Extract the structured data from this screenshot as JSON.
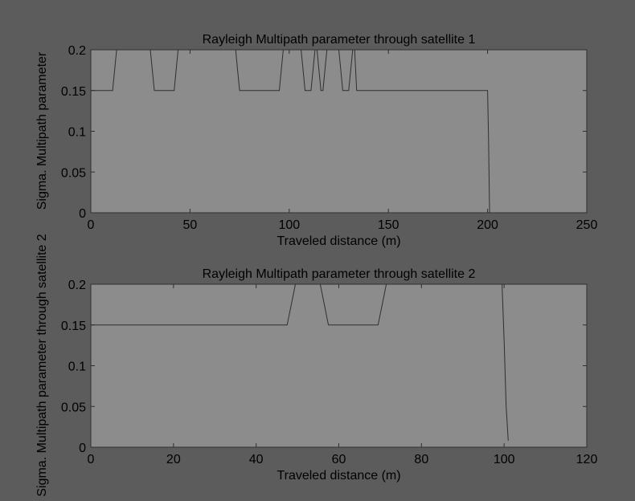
{
  "figure": {
    "bg_color": "#5c5c5c",
    "plot_bg_color": "#8c8c8c",
    "line_color": "#2f2f2f",
    "text_color": "#000000"
  },
  "chart_data": [
    {
      "type": "line",
      "title": "Rayleigh Multipath parameter through satellite 1",
      "xlabel": "Traveled distance (m)",
      "ylabel": "Sigma. Multipath parameter",
      "xlim": [
        0,
        250
      ],
      "ylim": [
        0,
        0.2
      ],
      "xticks": [
        "0",
        "50",
        "100",
        "150",
        "200",
        "250"
      ],
      "yticks": [
        "0",
        "0.05",
        "0.1",
        "0.15",
        "0.2"
      ],
      "series": [
        {
          "x": [
            0,
            11,
            12,
            13,
            30,
            31,
            32,
            42,
            43,
            44,
            73,
            74,
            75,
            95,
            96,
            97,
            106,
            107,
            108,
            111,
            112,
            113,
            114,
            115,
            116,
            117,
            118,
            119,
            120,
            125,
            126,
            127,
            130,
            131,
            132,
            133,
            134,
            200,
            200.5,
            201
          ],
          "y": [
            0.15,
            0.15,
            0.175,
            0.2,
            0.2,
            0.175,
            0.15,
            0.15,
            0.175,
            0.2,
            0.2,
            0.175,
            0.15,
            0.15,
            0.175,
            0.2,
            0.2,
            0.175,
            0.15,
            0.15,
            0.175,
            0.2,
            0.2,
            0.175,
            0.15,
            0.15,
            0.175,
            0.2,
            0.2,
            0.2,
            0.175,
            0.15,
            0.15,
            0.175,
            0.2,
            0.2,
            0.15,
            0.15,
            0.09,
            0.0
          ]
        }
      ]
    },
    {
      "type": "line",
      "title": "Rayleigh Multipath parameter through satellite 2",
      "xlabel": "Traveled distance (m)",
      "ylabel": "Sigma. Multipath parameter through satellite 2",
      "xlim": [
        0,
        120
      ],
      "ylim": [
        0,
        0.2
      ],
      "xticks": [
        "0",
        "20",
        "40",
        "60",
        "80",
        "100",
        "120"
      ],
      "yticks": [
        "0",
        "0.05",
        "0.1",
        "0.15",
        "0.2"
      ],
      "series": [
        {
          "x": [
            0,
            47.5,
            48.5,
            49.5,
            55.5,
            56.5,
            57.5,
            69.5,
            70.5,
            71.5,
            99.5,
            100,
            100.5,
            101
          ],
          "y": [
            0.15,
            0.15,
            0.175,
            0.2,
            0.2,
            0.175,
            0.15,
            0.15,
            0.175,
            0.2,
            0.2,
            0.13,
            0.05,
            0.008
          ]
        }
      ]
    }
  ]
}
